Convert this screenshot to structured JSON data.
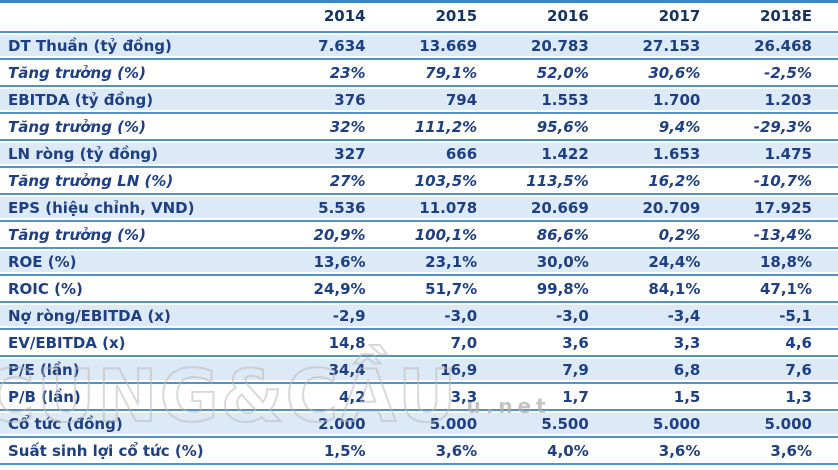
{
  "chart_data": {
    "type": "table",
    "title": "",
    "columns": [
      "",
      "2014",
      "2015",
      "2016",
      "2017",
      "2018E"
    ],
    "rows": [
      {
        "label": "DT Thuần (tỷ đồng)",
        "values": [
          "7.634",
          "13.669",
          "20.783",
          "27.153",
          "26.468"
        ],
        "striped": true,
        "italic": false
      },
      {
        "label": "Tăng trưởng (%)",
        "values": [
          "23%",
          "79,1%",
          "52,0%",
          "30,6%",
          "-2,5%"
        ],
        "striped": false,
        "italic": true
      },
      {
        "label": "EBITDA (tỷ đồng)",
        "values": [
          "376",
          "794",
          "1.553",
          "1.700",
          "1.203"
        ],
        "striped": true,
        "italic": false
      },
      {
        "label": "Tăng trưởng (%)",
        "values": [
          "32%",
          "111,2%",
          "95,6%",
          "9,4%",
          "-29,3%"
        ],
        "striped": false,
        "italic": true
      },
      {
        "label": "LN ròng (tỷ đồng)",
        "values": [
          "327",
          "666",
          "1.422",
          "1.653",
          "1.475"
        ],
        "striped": true,
        "italic": false
      },
      {
        "label": "Tăng trưởng LN (%)",
        "values": [
          "27%",
          "103,5%",
          "113,5%",
          "16,2%",
          "-10,7%"
        ],
        "striped": false,
        "italic": true
      },
      {
        "label": "EPS (hiệu chỉnh, VND)",
        "values": [
          "5.536",
          "11.078",
          "20.669",
          "20.709",
          "17.925"
        ],
        "striped": true,
        "italic": false
      },
      {
        "label": "Tăng trưởng (%)",
        "values": [
          "20,9%",
          "100,1%",
          "86,6%",
          "0,2%",
          "-13,4%"
        ],
        "striped": false,
        "italic": true
      },
      {
        "label": "ROE (%)",
        "values": [
          "13,6%",
          "23,1%",
          "30,0%",
          "24,4%",
          "18,8%"
        ],
        "striped": true,
        "italic": false
      },
      {
        "label": "ROIC (%)",
        "values": [
          "24,9%",
          "51,7%",
          "99,8%",
          "84,1%",
          "47,1%"
        ],
        "striped": false,
        "italic": false
      },
      {
        "label": "Nợ ròng/EBITDA (x)",
        "values": [
          "-2,9",
          "-3,0",
          "-3,0",
          "-3,4",
          "-5,1"
        ],
        "striped": true,
        "italic": false
      },
      {
        "label": "EV/EBITDA (x)",
        "values": [
          "14,8",
          "7,0",
          "3,6",
          "3,3",
          "4,6"
        ],
        "striped": false,
        "italic": false
      },
      {
        "label": "P/E (lần)",
        "values": [
          "34,4",
          "16,9",
          "7,9",
          "6,8",
          "7,6"
        ],
        "striped": true,
        "italic": false
      },
      {
        "label": "P/B (lần)",
        "values": [
          "4,2",
          "3,3",
          "1,7",
          "1,5",
          "1,3"
        ],
        "striped": false,
        "italic": false
      },
      {
        "label": "Cổ tức (đồng)",
        "values": [
          "2.000",
          "5.000",
          "5.500",
          "5.000",
          "5.000"
        ],
        "striped": true,
        "italic": false
      },
      {
        "label": "Suất sinh lợi cổ tức (%)",
        "values": [
          "1,5%",
          "3,6%",
          "4,0%",
          "3,6%",
          "3,6%"
        ],
        "striped": false,
        "italic": false
      }
    ]
  },
  "watermark": {
    "text": "CUNG&CẦU",
    "suffix": "u.net"
  },
  "colors": {
    "row_line": "#4f93c8",
    "top_border": "#3f85c2",
    "stripe_bg": "#dce9f7",
    "body_text": "#1e3f82",
    "header_text": "#16335f",
    "watermark_gray": "#b9b9b9"
  }
}
